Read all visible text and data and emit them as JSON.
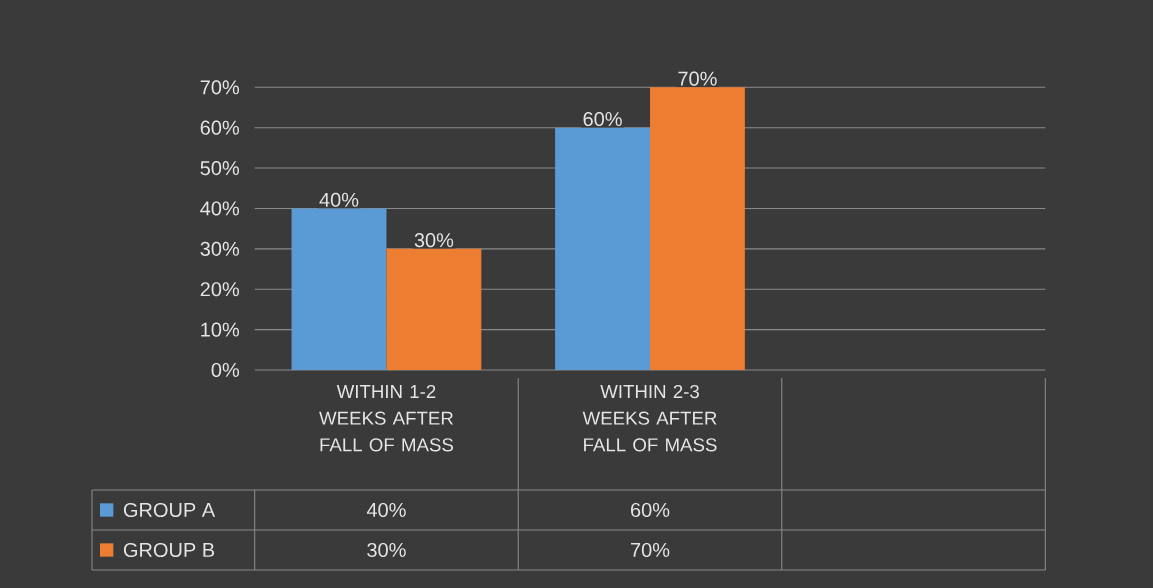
{
  "chart_data": {
    "type": "bar",
    "categories": [
      "WITHIN 1-2 WEEKS AFTER FALL OF MASS",
      "WITHIN 2-3 WEEKS AFTER FALL OF MASS",
      null
    ],
    "series": [
      {
        "name": "GROUP A",
        "color": "#5b9bd5",
        "values": [
          40,
          60,
          null
        ],
        "value_labels": [
          "40%",
          "60%",
          null
        ]
      },
      {
        "name": "GROUP B",
        "color": "#ed7d31",
        "values": [
          30,
          70,
          null
        ],
        "value_labels": [
          "30%",
          "70%",
          null
        ]
      }
    ],
    "ylim": [
      0,
      70
    ],
    "yticks": [
      {
        "value": 0,
        "label": "0%"
      },
      {
        "value": 10,
        "label": "10%"
      },
      {
        "value": 20,
        "label": "20%"
      },
      {
        "value": 30,
        "label": "30%"
      },
      {
        "value": 40,
        "label": "40%"
      },
      {
        "value": 50,
        "label": "50%"
      },
      {
        "value": 60,
        "label": "60%"
      },
      {
        "value": 70,
        "label": "70%"
      }
    ],
    "grid": "y",
    "legend": "bottom"
  }
}
